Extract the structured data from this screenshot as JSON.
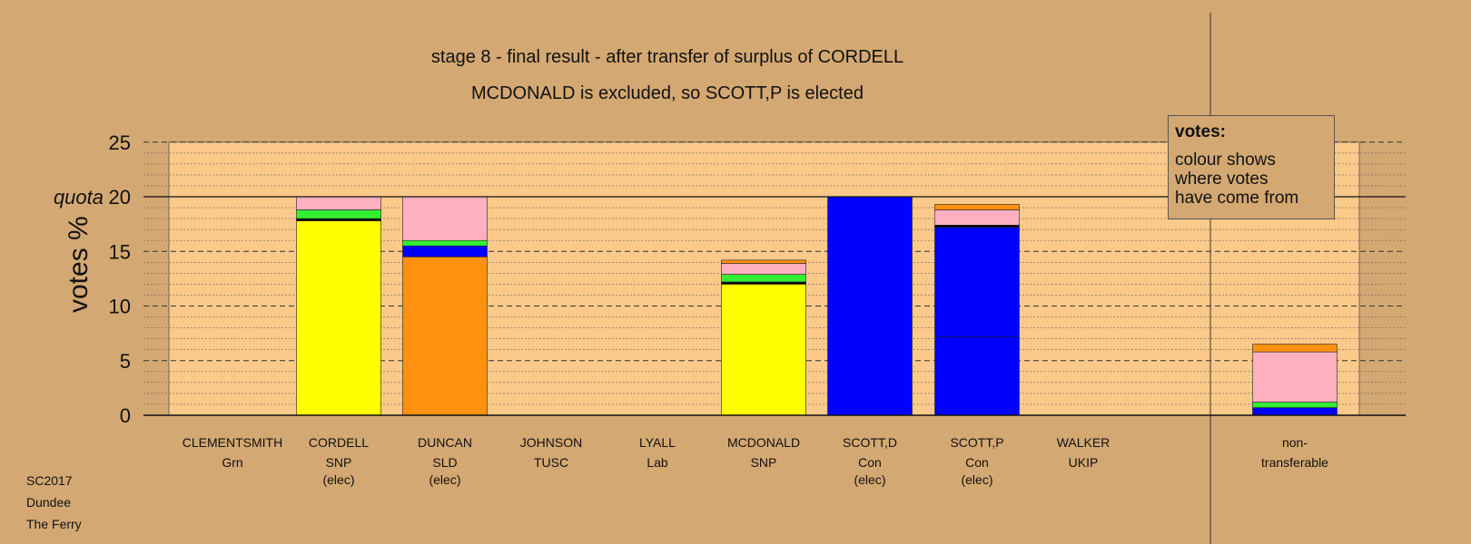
{
  "title_line1": "stage 8 - final result - after transfer of surplus of CORDELL",
  "title_line2": "MCDONALD is excluded, so SCOTT,P is elected",
  "legend": {
    "heading": "votes:",
    "lines": [
      "colour shows",
      "where votes",
      "have come from"
    ]
  },
  "footer": [
    "SC2017",
    "Dundee",
    "The Ferry"
  ],
  "colors": {
    "background": "#d4a872",
    "plot_band": "#fbc98a"
  },
  "chart_data": {
    "type": "bar",
    "stacked": true,
    "ylabel": "votes %",
    "ylim": [
      0,
      25
    ],
    "yticks": [
      0,
      5,
      10,
      15,
      20,
      25
    ],
    "quota": {
      "label": "quota",
      "value": 20
    },
    "grid": "dashed major every 5, dotted minor every 1",
    "categories": [
      {
        "name": "CLEMENTSMITH",
        "party": "Grn",
        "note": ""
      },
      {
        "name": "CORDELL",
        "party": "SNP",
        "note": "(elec)"
      },
      {
        "name": "DUNCAN",
        "party": "SLD",
        "note": "(elec)"
      },
      {
        "name": "JOHNSON",
        "party": "TUSC",
        "note": ""
      },
      {
        "name": "LYALL",
        "party": "Lab",
        "note": ""
      },
      {
        "name": "MCDONALD",
        "party": "SNP",
        "note": ""
      },
      {
        "name": "SCOTT,D",
        "party": "Con",
        "note": "(elec)"
      },
      {
        "name": "SCOTT,P",
        "party": "Con",
        "note": "(elec)"
      },
      {
        "name": "WALKER",
        "party": "UKIP",
        "note": ""
      },
      {
        "name": "non-",
        "party": "transferable",
        "note": ""
      }
    ],
    "stacks": [
      [],
      [
        {
          "color": "#ffff00",
          "value": 17.8
        },
        {
          "color": "#000000",
          "value": 0.2
        },
        {
          "color": "#33ee33",
          "value": 0.8
        },
        {
          "color": "#ffb0c0",
          "value": 1.2
        }
      ],
      [
        {
          "color": "#ff9010",
          "value": 14.5
        },
        {
          "color": "#0000ff",
          "value": 1.0
        },
        {
          "color": "#33ee33",
          "value": 0.5
        },
        {
          "color": "#ffb0c0",
          "value": 4.0
        }
      ],
      [],
      [],
      [
        {
          "color": "#ffff00",
          "value": 12.0
        },
        {
          "color": "#000000",
          "value": 0.2
        },
        {
          "color": "#33ee33",
          "value": 0.7
        },
        {
          "color": "#ffb0c0",
          "value": 1.0
        },
        {
          "color": "#ff9010",
          "value": 0.3
        }
      ],
      [
        {
          "color": "#0000ff",
          "value": 20.0
        }
      ],
      [
        {
          "color": "#0000ff",
          "value": 7.2
        },
        {
          "color": "#0000ff",
          "value": 10.0
        },
        {
          "color": "#000000",
          "value": 0.2
        },
        {
          "color": "#ffb0c0",
          "value": 1.4
        },
        {
          "color": "#ff9010",
          "value": 0.5
        }
      ],
      [],
      [
        {
          "color": "#0000ff",
          "value": 0.7
        },
        {
          "color": "#33ee33",
          "value": 0.5
        },
        {
          "color": "#ffb0c0",
          "value": 4.6
        },
        {
          "color": "#ff9010",
          "value": 0.7
        }
      ]
    ]
  }
}
